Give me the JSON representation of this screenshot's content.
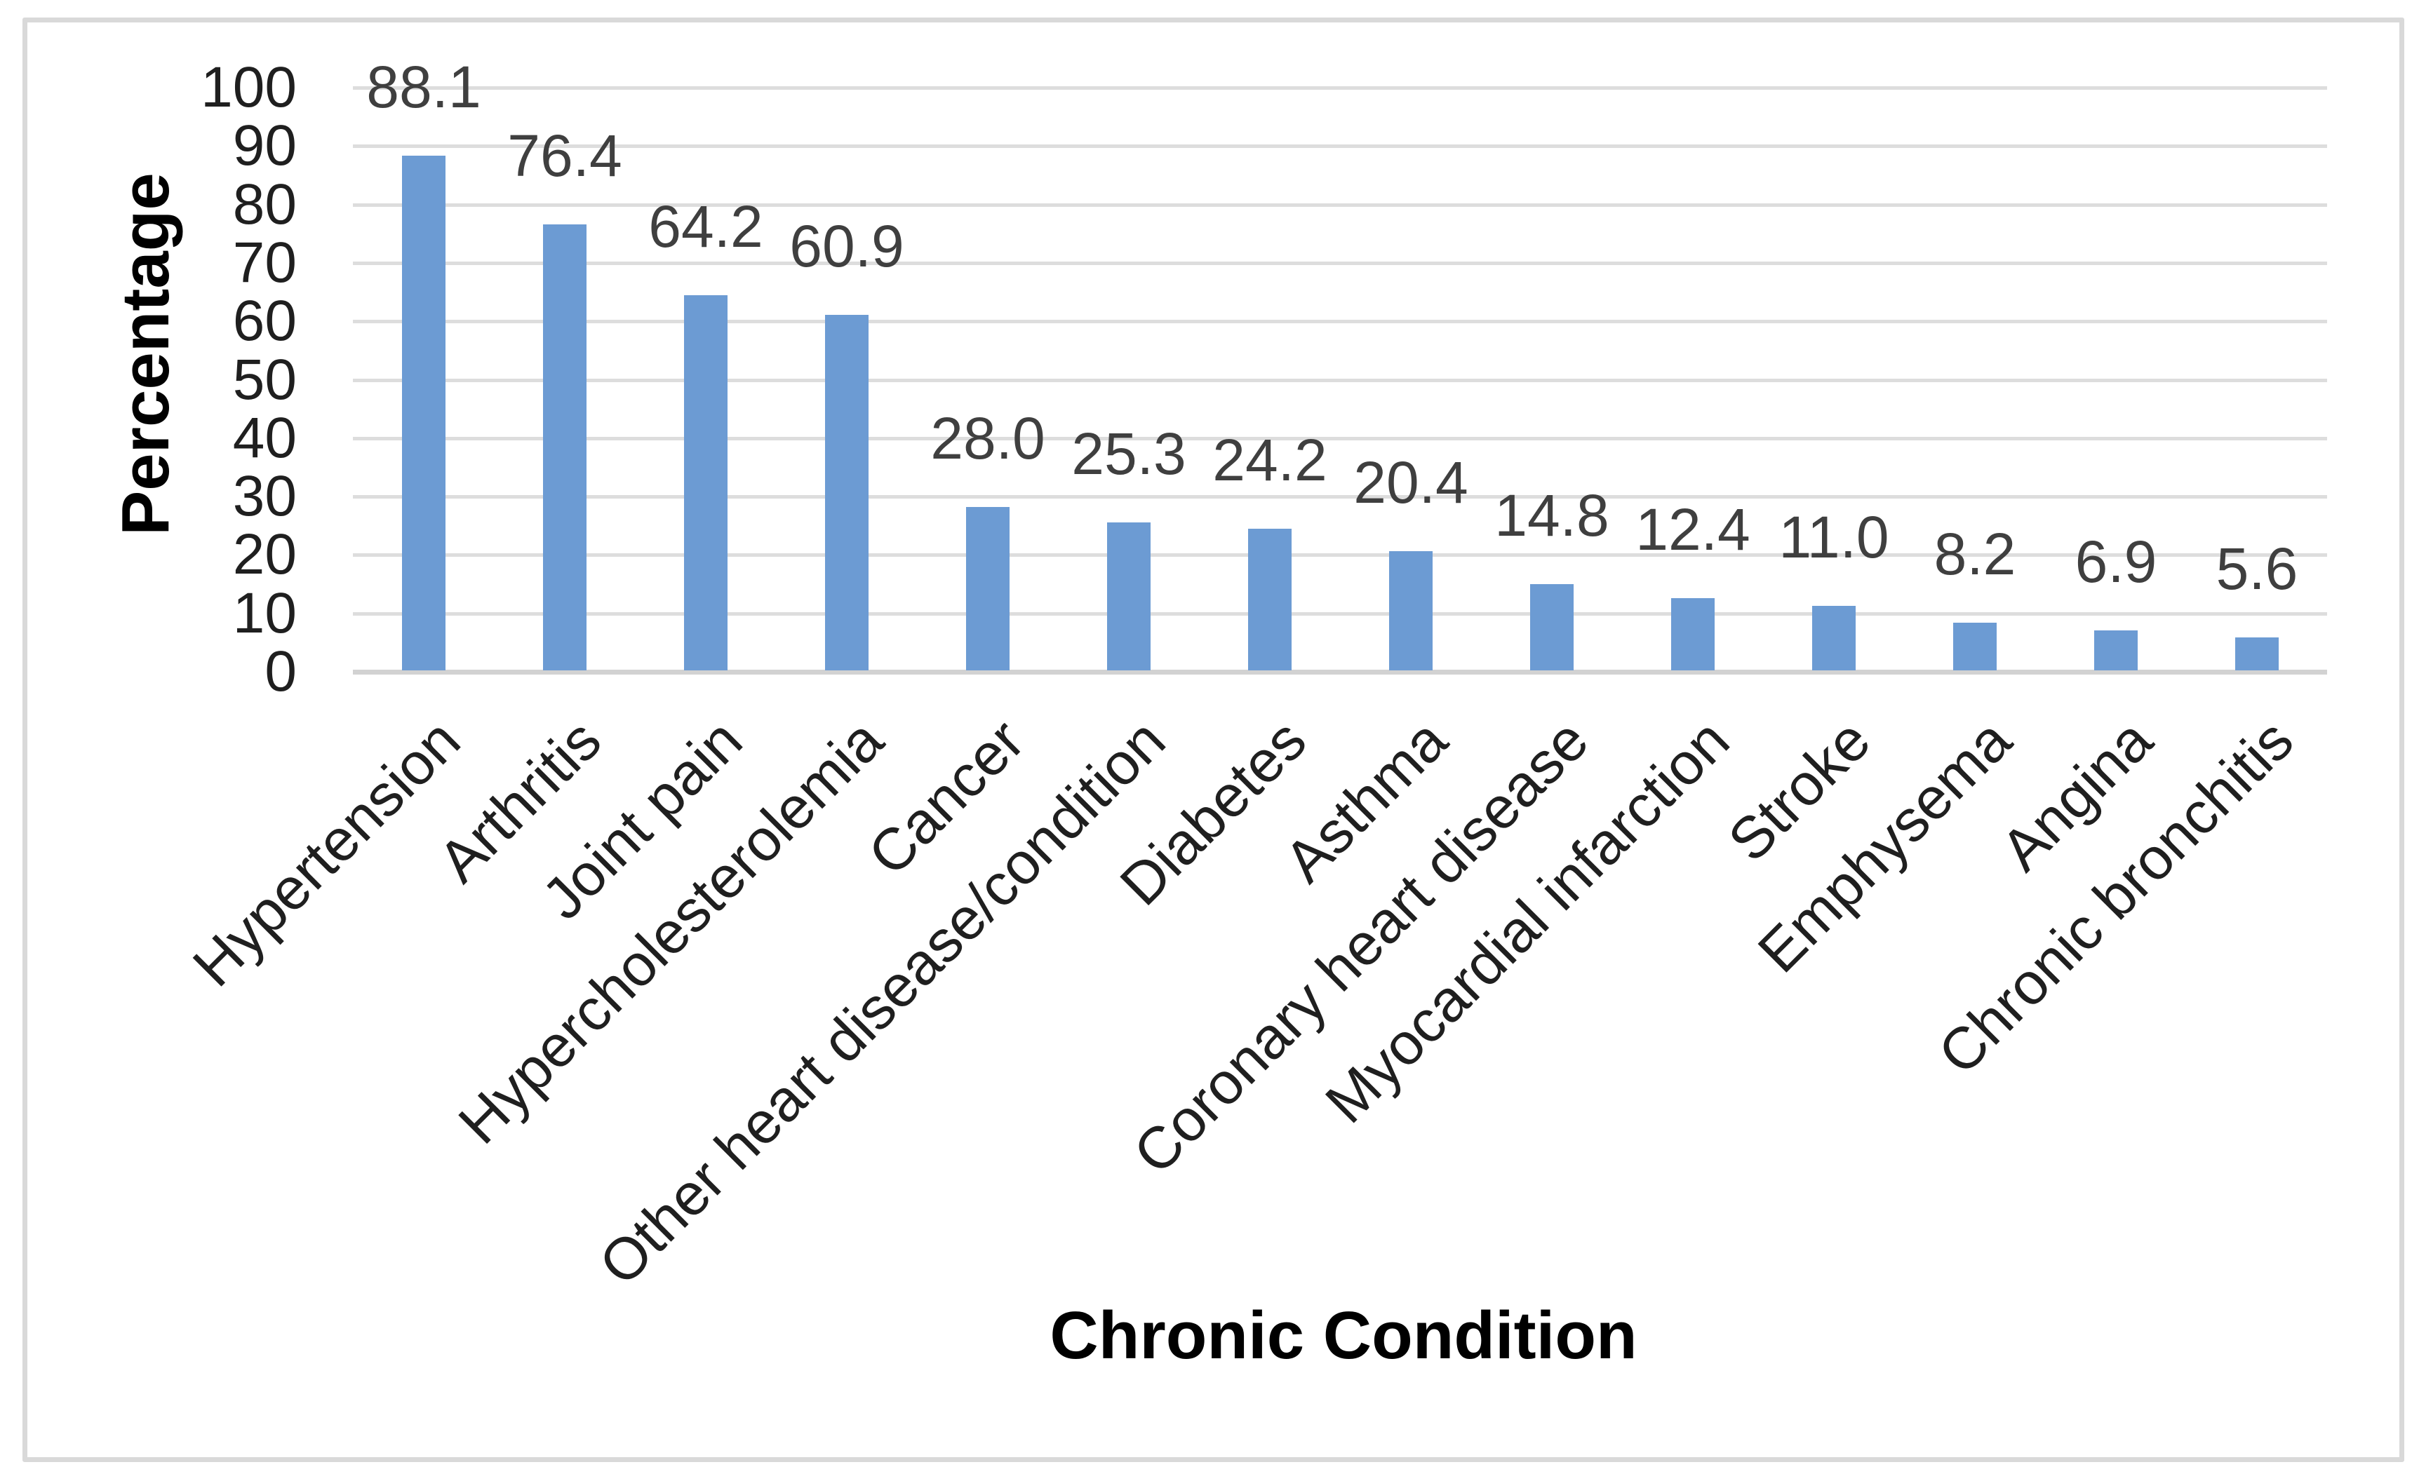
{
  "chart_data": {
    "type": "bar",
    "title": "",
    "xlabel": "Chronic Condition",
    "ylabel": "Percentage",
    "categories": [
      "Hypertension",
      "Arthritis",
      "Joint pain",
      "Hypercholesterolemia",
      "Cancer",
      "Other heart disease/condition",
      "Diabetes",
      "Asthma",
      "Coronary heart disease",
      "Myocardial infarction",
      "Stroke",
      "Emphysema",
      "Angina",
      "Chronic bronchitis"
    ],
    "values": [
      88.1,
      76.4,
      64.2,
      60.9,
      28.0,
      25.3,
      24.2,
      20.4,
      14.8,
      12.4,
      11.0,
      8.2,
      6.9,
      5.6
    ],
    "value_labels": [
      "88.1",
      "76.4",
      "64.2",
      "60.9",
      "28.0",
      "25.3",
      "24.2",
      "20.4",
      "14.8",
      "12.4",
      "11.0",
      "8.2",
      "6.9",
      "5.6"
    ],
    "ylim": [
      0,
      100
    ],
    "yticks": [
      0,
      10,
      20,
      30,
      40,
      50,
      60,
      70,
      80,
      90,
      100
    ],
    "grid": "horizontal-only",
    "legend": "none",
    "category_rotation_deg": -45,
    "colors": {
      "bar": "#6c9bd3",
      "gridline": "#dddddd",
      "axis_line": "#d2d2d2",
      "value_label": "#3f3f3f",
      "tick_label": "#1f1f1f",
      "frame_border": "#d9d9d9",
      "background": "#ffffff"
    }
  }
}
